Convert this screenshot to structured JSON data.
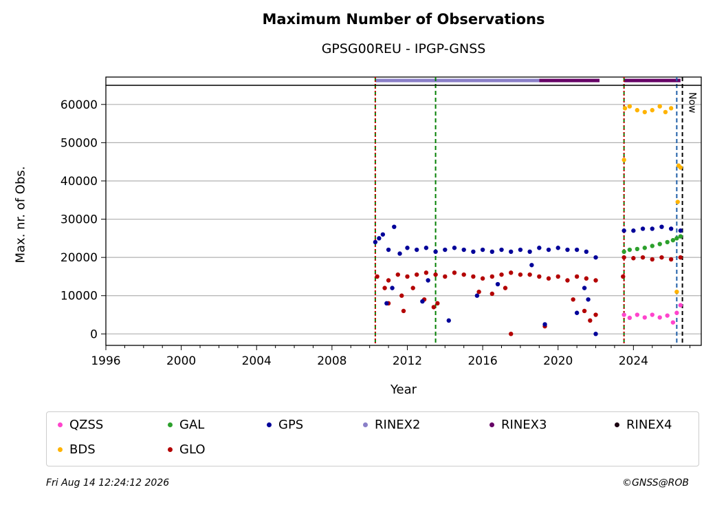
{
  "chart_data": {
    "type": "scatter",
    "title": "Maximum Number of Observations",
    "subtitle": "GPSG00REU - IPGP-GNSS",
    "xlabel": "Year",
    "ylabel": "Max. nr. of Obs.",
    "xlim": [
      1996.0,
      2027.6
    ],
    "ylim": [
      -3000,
      65000
    ],
    "x_ticks": [
      1996,
      2000,
      2004,
      2008,
      2012,
      2016,
      2020,
      2024
    ],
    "x_tick_labels": [
      "1996",
      "2000",
      "2004",
      "2008",
      "2012",
      "2016",
      "2020",
      "2024"
    ],
    "y_ticks": [
      0,
      10000,
      20000,
      30000,
      40000,
      50000,
      60000
    ],
    "y_tick_labels": [
      "0",
      "10000",
      "20000",
      "30000",
      "40000",
      "50000",
      "60000"
    ],
    "grid": "horizontal",
    "legend_position": "below",
    "series": [
      {
        "name": "QZSS",
        "color": "#ff44cc",
        "x": [
          2023.5,
          2023.8,
          2024.2,
          2024.6,
          2025.0,
          2025.4,
          2025.8,
          2026.1,
          2026.3,
          2026.5
        ],
        "y": [
          5000,
          4200,
          5000,
          4300,
          5000,
          4300,
          4800,
          3000,
          5500,
          7500
        ]
      },
      {
        "name": "BDS",
        "color": "#ffb300",
        "x": [
          2023.5,
          2023.55,
          2023.8,
          2024.2,
          2024.6,
          2025.0,
          2025.4,
          2025.7,
          2026.0,
          2026.3,
          2026.35,
          2026.4,
          2026.5
        ],
        "y": [
          45500,
          59000,
          59500,
          58500,
          58000,
          58500,
          59500,
          58000,
          59000,
          11000,
          34500,
          44000,
          43500
        ]
      },
      {
        "name": "GAL",
        "color": "#2ca02c",
        "x": [
          2023.5,
          2023.8,
          2024.2,
          2024.6,
          2025.0,
          2025.4,
          2025.8,
          2026.1,
          2026.3,
          2026.5
        ],
        "y": [
          21500,
          22000,
          22200,
          22500,
          23000,
          23500,
          24000,
          24500,
          25000,
          25500
        ]
      },
      {
        "name": "GLO",
        "color": "#b30000",
        "x": [
          2010.4,
          2010.8,
          2011.0,
          2011.5,
          2012.0,
          2012.5,
          2013.0,
          2013.5,
          2014.0,
          2014.5,
          2015.0,
          2015.5,
          2016.0,
          2016.5,
          2017.0,
          2017.5,
          2018.0,
          2018.5,
          2019.0,
          2019.5,
          2020.0,
          2020.5,
          2021.0,
          2021.5,
          2022.0,
          2023.5,
          2024.0,
          2024.5,
          2025.0,
          2025.5,
          2026.0,
          2026.5,
          2011.0,
          2011.7,
          2012.3,
          2012.9,
          2013.4,
          2015.8,
          2016.5,
          2017.2,
          2017.5,
          2019.3,
          2020.8,
          2021.4,
          2021.7,
          2011.8,
          2013.6,
          2022.0,
          2023.45
        ],
        "y": [
          15000,
          12000,
          14000,
          15500,
          15000,
          15500,
          16000,
          15500,
          15000,
          16000,
          15500,
          15000,
          14500,
          15000,
          15500,
          16000,
          15500,
          15500,
          15000,
          14500,
          15000,
          14000,
          15000,
          14500,
          14000,
          20000,
          19800,
          20000,
          19500,
          20000,
          19500,
          20000,
          8000,
          10000,
          12000,
          9000,
          7000,
          11000,
          10500,
          12000,
          0,
          2000,
          9000,
          6000,
          3500,
          6000,
          8000,
          5000,
          15000
        ]
      },
      {
        "name": "GPS",
        "color": "#000099",
        "x": [
          2010.3,
          2010.5,
          2010.7,
          2011.0,
          2011.3,
          2011.6,
          2012.0,
          2012.5,
          2013.0,
          2013.5,
          2014.0,
          2014.5,
          2015.0,
          2015.5,
          2016.0,
          2016.5,
          2017.0,
          2017.5,
          2018.0,
          2018.5,
          2019.0,
          2019.5,
          2020.0,
          2020.5,
          2021.0,
          2021.5,
          2022.0,
          2023.5,
          2024.0,
          2024.5,
          2025.0,
          2025.5,
          2026.0,
          2026.5,
          2010.9,
          2011.2,
          2012.8,
          2014.2,
          2015.7,
          2016.8,
          2019.3,
          2021.4,
          2021.6,
          2022.0,
          2013.1,
          2018.6,
          2021.0
        ],
        "y": [
          24000,
          25000,
          26000,
          22000,
          28000,
          21000,
          22500,
          22000,
          22500,
          21500,
          22000,
          22500,
          22000,
          21500,
          22000,
          21500,
          22000,
          21500,
          22000,
          21500,
          22500,
          22000,
          22500,
          22000,
          22000,
          21500,
          20000,
          27000,
          27000,
          27500,
          27500,
          28000,
          27500,
          27000,
          8000,
          12000,
          8500,
          3500,
          10000,
          13000,
          2500,
          12000,
          9000,
          0,
          14000,
          18000,
          5500
        ]
      },
      {
        "name": "RINEX2",
        "color": "#8a7fc8",
        "x0": 2010.3,
        "x1": 2019.0
      },
      {
        "name": "RINEX3",
        "color": "#660066",
        "x0": 2019.0,
        "x1": 2022.2,
        "x2": 2023.5,
        "x3": 2026.5
      },
      {
        "name": "RINEX4",
        "color": "#1a0010"
      }
    ],
    "vertical_lines": [
      {
        "x": 2010.3,
        "color": "#008000",
        "style": "dashed"
      },
      {
        "x": 2010.3,
        "color": "#cc0000",
        "style": "dotted"
      },
      {
        "x": 2013.5,
        "color": "#008000",
        "style": "dashed"
      },
      {
        "x": 2023.5,
        "color": "#008000",
        "style": "dashed"
      },
      {
        "x": 2023.5,
        "color": "#cc0000",
        "style": "dotted"
      },
      {
        "x": 2026.3,
        "color": "#1f5fa8",
        "style": "dashed"
      },
      {
        "x": 2026.6,
        "color": "#000000",
        "style": "dashed"
      }
    ],
    "now_label": "Now"
  },
  "legend": [
    {
      "label": "QZSS",
      "color": "#ff44cc"
    },
    {
      "label": "GAL",
      "color": "#2ca02c"
    },
    {
      "label": "GPS",
      "color": "#000099"
    },
    {
      "label": "RINEX2",
      "color": "#8a7fc8"
    },
    {
      "label": "RINEX3",
      "color": "#660066"
    },
    {
      "label": "RINEX4",
      "color": "#1a0010"
    },
    {
      "label": "BDS",
      "color": "#ffb300"
    },
    {
      "label": "GLO",
      "color": "#b30000"
    }
  ],
  "footer": {
    "timestamp": "Fri Aug 14 12:24:12 2026",
    "credit": "©GNSS@ROB"
  }
}
